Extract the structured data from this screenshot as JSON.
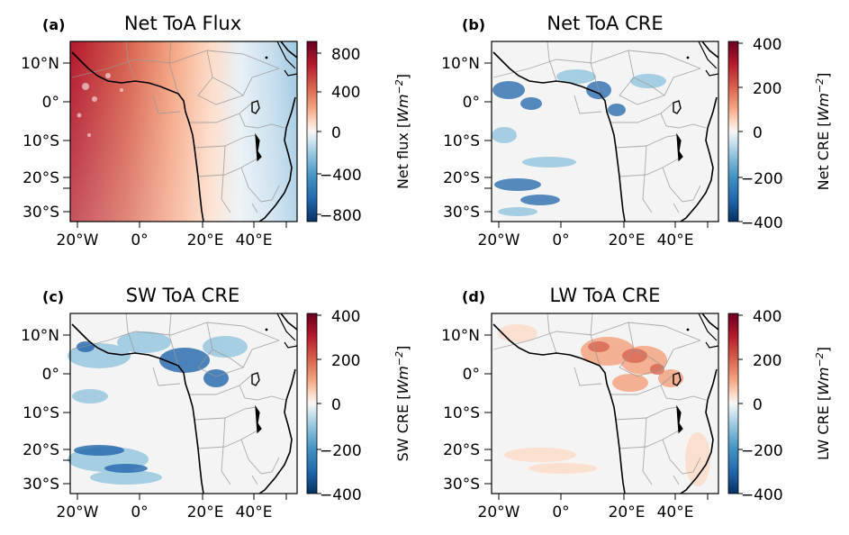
{
  "figure": {
    "panels": [
      {
        "tag": "(a)",
        "title": "Net ToA Flux",
        "colorbar": {
          "label_main": "Net flux [",
          "label_unit": "Wm",
          "label_exp": "−2",
          "label_close": "]",
          "ticks": [
            "800",
            "400",
            "0",
            "−400",
            "−800"
          ]
        }
      },
      {
        "tag": "(b)",
        "title": "Net ToA CRE",
        "colorbar": {
          "label_main": "Net CRE [",
          "label_unit": "Wm",
          "label_exp": "−2",
          "label_close": "]",
          "ticks": [
            "400",
            "200",
            "0",
            "−200",
            "−400"
          ]
        }
      },
      {
        "tag": "(c)",
        "title": "SW ToA CRE",
        "colorbar": {
          "label_main": "SW CRE [",
          "label_unit": "Wm",
          "label_exp": "−2",
          "label_close": "]",
          "ticks": [
            "400",
            "200",
            "0",
            "−200",
            "−400"
          ]
        }
      },
      {
        "tag": "(d)",
        "title": "LW ToA CRE",
        "colorbar": {
          "label_main": "LW CRE [",
          "label_unit": "Wm",
          "label_exp": "−2",
          "label_close": "]",
          "ticks": [
            "400",
            "200",
            "0",
            "−200",
            "−400"
          ]
        }
      }
    ],
    "lat_ticks": [
      "10°N",
      "0°",
      "10°S",
      "20°S",
      "30°S"
    ],
    "lon_ticks": [
      "20°W",
      "0°",
      "20°E",
      "40°E"
    ]
  },
  "chart_data": [
    {
      "type": "heatmap",
      "title": "Net ToA Flux",
      "colorbar_label": "Net flux [Wm−2]",
      "colormap": "RdBu_r",
      "vlim": [
        -900,
        900
      ],
      "colorbar_ticks": [
        800,
        400,
        0,
        -400,
        -800
      ],
      "lat_ticks": [
        "10°N",
        "0°",
        "10°S",
        "20°S",
        "30°S"
      ],
      "lon_ticks": [
        "20°W",
        "0°",
        "20°E",
        "40°E"
      ]
    },
    {
      "type": "heatmap",
      "title": "Net ToA CRE",
      "colorbar_label": "Net CRE [Wm−2]",
      "colormap": "RdBu_r",
      "vlim": [
        -400,
        400
      ],
      "colorbar_ticks": [
        400,
        200,
        0,
        -200,
        -400
      ],
      "lat_ticks": [
        "10°N",
        "0°",
        "10°S",
        "20°S",
        "30°S"
      ],
      "lon_ticks": [
        "20°W",
        "0°",
        "20°E",
        "40°E"
      ]
    },
    {
      "type": "heatmap",
      "title": "SW ToA CRE",
      "colorbar_label": "SW CRE [Wm−2]",
      "colormap": "RdBu_r",
      "vlim": [
        -400,
        400
      ],
      "colorbar_ticks": [
        400,
        200,
        0,
        -200,
        -400
      ],
      "lat_ticks": [
        "10°N",
        "0°",
        "10°S",
        "20°S",
        "30°S"
      ],
      "lon_ticks": [
        "20°W",
        "0°",
        "20°E",
        "40°E"
      ]
    },
    {
      "type": "heatmap",
      "title": "LW ToA CRE",
      "colorbar_label": "LW CRE [Wm−2]",
      "colormap": "RdBu_r",
      "vlim": [
        -400,
        400
      ],
      "colorbar_ticks": [
        400,
        200,
        0,
        -200,
        -400
      ],
      "lat_ticks": [
        "10°N",
        "0°",
        "10°S",
        "20°S",
        "30°S"
      ],
      "lon_ticks": [
        "20°W",
        "0°",
        "20°E",
        "40°E"
      ]
    }
  ],
  "colors": {
    "coastline": "#000000",
    "borders": "#aaaaaa",
    "neutral": "#f4f4f4",
    "cmap_low": "#053061",
    "cmap_mid_low": "#92c5de",
    "cmap_mid_high": "#f4a582",
    "cmap_high": "#67001f"
  }
}
